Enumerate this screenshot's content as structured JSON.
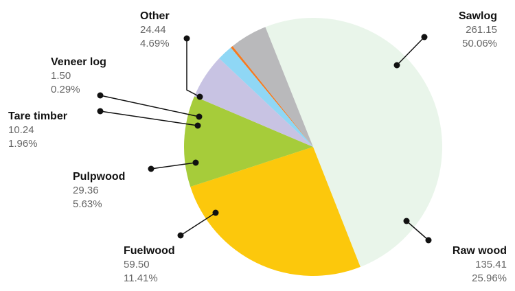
{
  "chart_data": {
    "type": "pie",
    "unit": "",
    "slices": [
      {
        "name": "Sawlog",
        "value": "261.15",
        "percent": "50.06%",
        "color": "#e9f5ea"
      },
      {
        "name": "Raw wood",
        "value": "135.41",
        "percent": "25.96%",
        "color": "#fcc80c"
      },
      {
        "name": "Fuelwood",
        "value": "59.50",
        "percent": "11.41%",
        "color": "#a6cc3a"
      },
      {
        "name": "Pulpwood",
        "value": "29.36",
        "percent": "5.63%",
        "color": "#c8c3e3"
      },
      {
        "name": "Tare timber",
        "value": "10.24",
        "percent": "1.96%",
        "color": "#8fd7f5"
      },
      {
        "name": "Veneer log",
        "value": "1.50",
        "percent": "0.29%",
        "color": "#f47a21"
      },
      {
        "name": "Other",
        "value": "24.44",
        "percent": "4.69%",
        "color": "#b9b9bb"
      }
    ]
  }
}
